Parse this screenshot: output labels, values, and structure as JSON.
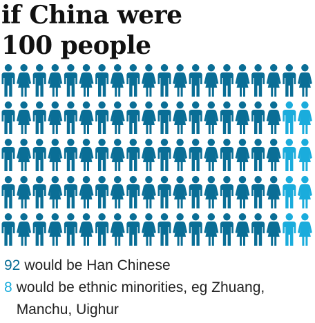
{
  "title": {
    "line1": "if China were",
    "line2": "100 people"
  },
  "colors": {
    "majority": "#0a6e96",
    "minority": "#1aacdc",
    "title": "#111111",
    "text": "#222222"
  },
  "chart_data": {
    "type": "pictogram",
    "icon": "person-icon",
    "total": 100,
    "rows": 5,
    "columns": 20,
    "categories": [
      "Han Chinese",
      "ethnic minorities"
    ],
    "values": [
      92,
      8
    ],
    "layout_note": "minority icons fill the last two columns of the bottom four rows"
  },
  "legend": [
    {
      "count": "92",
      "text": "would be Han Chinese",
      "color": "#0a6e96"
    },
    {
      "count": "8",
      "text": "would be ethnic minorities, eg Zhuang, Manchu, Uighur",
      "color": "#1aacdc"
    }
  ]
}
